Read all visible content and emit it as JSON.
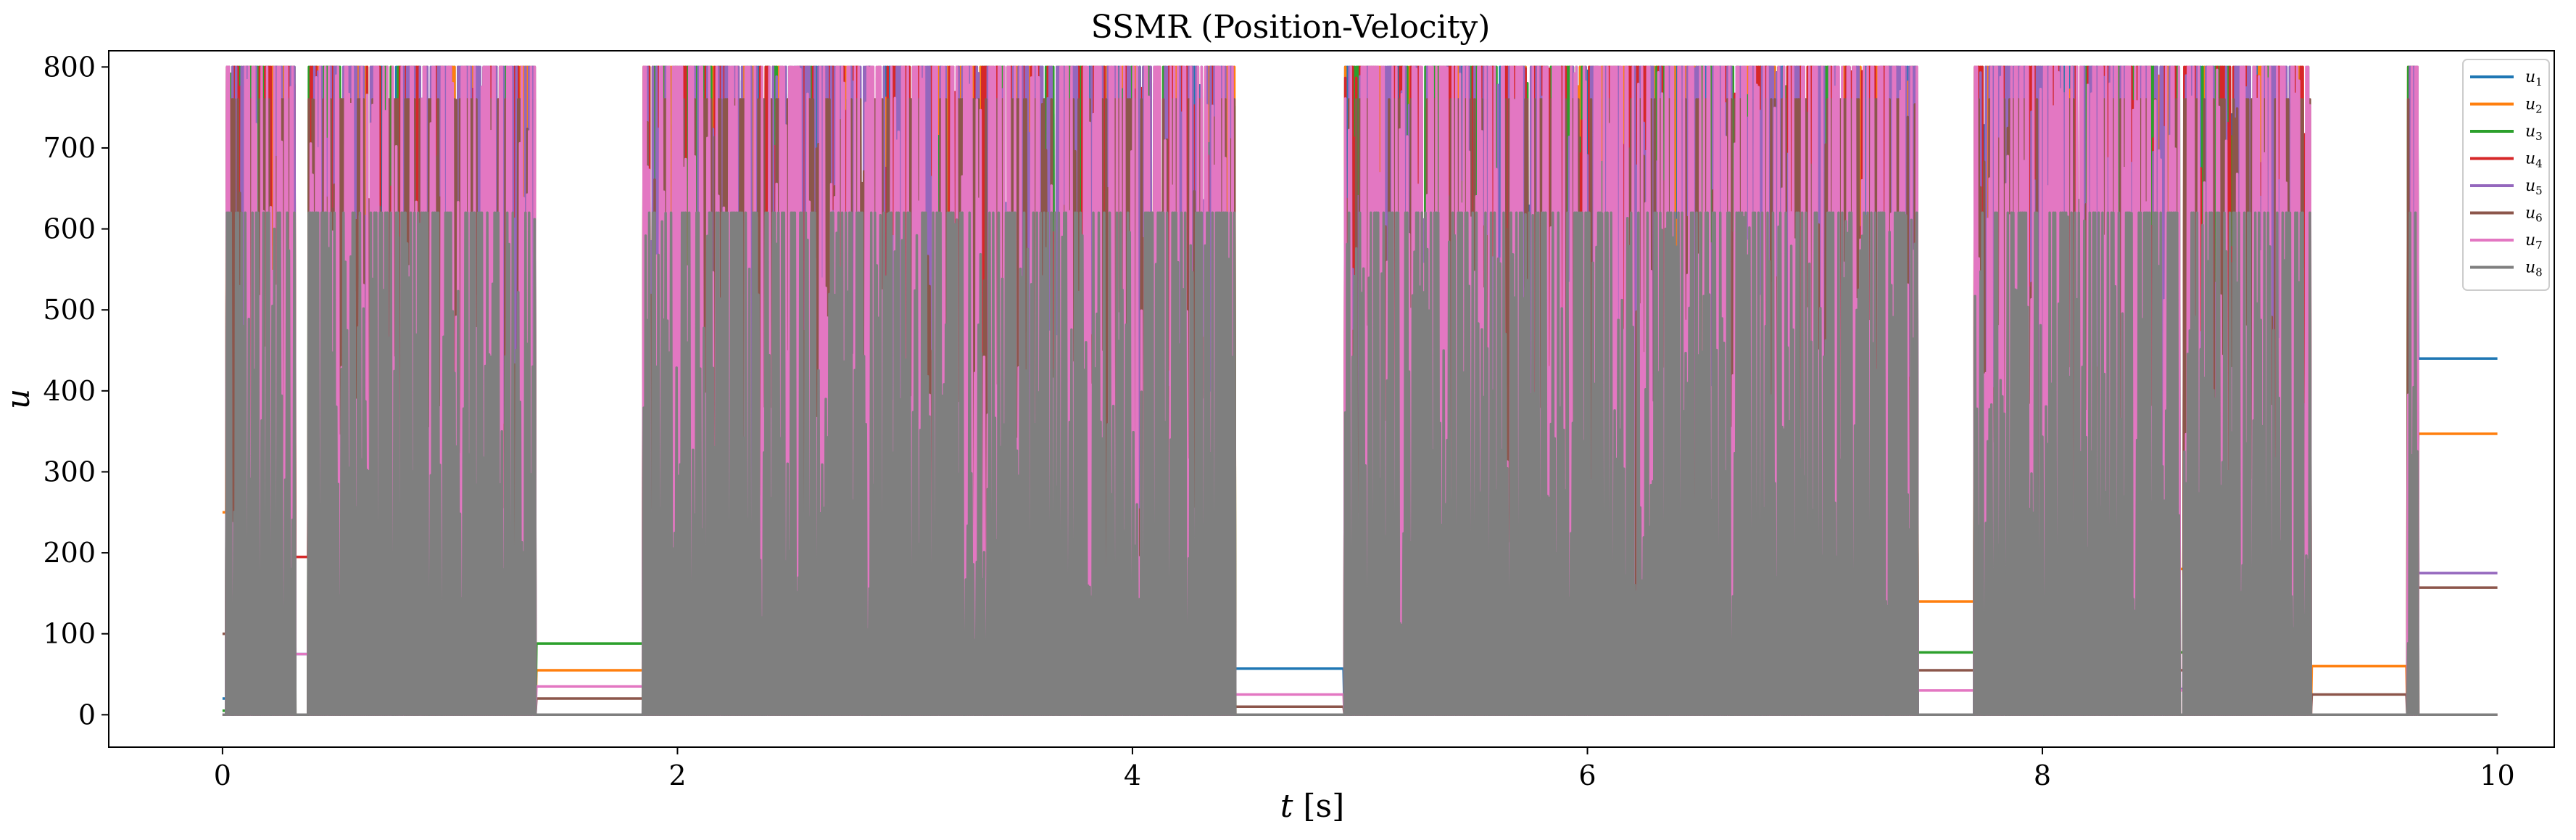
{
  "chart_data": {
    "type": "line",
    "title": "SSMR (Position-Velocity)",
    "xlabel_var": "t",
    "xlabel_unit": "[s]",
    "ylabel": "u",
    "xlim": [
      -0.5,
      10.25
    ],
    "ylim": [
      -40,
      820
    ],
    "xticks": [
      0,
      2,
      4,
      6,
      8,
      10
    ],
    "yticks": [
      0,
      100,
      200,
      300,
      400,
      500,
      600,
      700,
      800
    ],
    "grid": false,
    "legend_position": "top-right",
    "active_segments": [
      [
        0.02,
        0.32
      ],
      [
        0.38,
        1.38
      ],
      [
        1.85,
        4.45
      ],
      [
        4.93,
        7.45
      ],
      [
        7.7,
        8.6
      ],
      [
        8.62,
        9.18
      ],
      [
        9.6,
        9.65
      ]
    ],
    "series": [
      {
        "name": "u1",
        "sub": "1",
        "color": "#1f77b4",
        "seed": 11,
        "amp": 800,
        "steps": [
          [
            0.0,
            20
          ],
          [
            0.32,
            75
          ],
          [
            1.38,
            0
          ],
          [
            4.45,
            57
          ],
          [
            7.45,
            0
          ],
          [
            9.18,
            0
          ],
          [
            9.65,
            440
          ]
        ]
      },
      {
        "name": "u2",
        "sub": "2",
        "color": "#ff7f0e",
        "seed": 22,
        "amp": 800,
        "steps": [
          [
            0.0,
            250
          ],
          [
            0.32,
            0
          ],
          [
            1.38,
            55
          ],
          [
            4.45,
            0
          ],
          [
            7.45,
            140
          ],
          [
            8.6,
            180
          ],
          [
            9.18,
            60
          ],
          [
            9.65,
            347
          ]
        ]
      },
      {
        "name": "u3",
        "sub": "3",
        "color": "#2ca02c",
        "seed": 33,
        "amp": 800,
        "steps": [
          [
            0.0,
            5
          ],
          [
            0.32,
            0
          ],
          [
            1.38,
            88
          ],
          [
            4.45,
            0
          ],
          [
            7.45,
            77
          ],
          [
            9.18,
            0
          ],
          [
            9.65,
            0
          ]
        ]
      },
      {
        "name": "u4",
        "sub": "4",
        "color": "#d62728",
        "seed": 44,
        "amp": 800,
        "steps": [
          [
            0.0,
            0
          ],
          [
            0.32,
            195
          ],
          [
            1.38,
            0
          ],
          [
            4.45,
            0
          ],
          [
            7.45,
            0
          ],
          [
            9.18,
            0
          ],
          [
            9.65,
            0
          ]
        ]
      },
      {
        "name": "u5",
        "sub": "5",
        "color": "#9467bd",
        "seed": 55,
        "amp": 800,
        "steps": [
          [
            0.0,
            0
          ],
          [
            0.32,
            0
          ],
          [
            1.38,
            0
          ],
          [
            4.45,
            0
          ],
          [
            7.45,
            0
          ],
          [
            8.6,
            32
          ],
          [
            9.18,
            0
          ],
          [
            9.65,
            175
          ]
        ]
      },
      {
        "name": "u6",
        "sub": "6",
        "color": "#8c564b",
        "seed": 66,
        "amp": 760,
        "steps": [
          [
            0.0,
            100
          ],
          [
            0.32,
            0
          ],
          [
            1.38,
            20
          ],
          [
            4.45,
            10
          ],
          [
            7.45,
            55
          ],
          [
            9.18,
            25
          ],
          [
            9.65,
            157
          ]
        ]
      },
      {
        "name": "u7",
        "sub": "7",
        "color": "#e377c2",
        "seed": 77,
        "amp": 800,
        "steps": [
          [
            0.0,
            0
          ],
          [
            0.32,
            75
          ],
          [
            1.38,
            35
          ],
          [
            4.45,
            25
          ],
          [
            7.45,
            30
          ],
          [
            9.18,
            0
          ],
          [
            9.65,
            0
          ]
        ]
      },
      {
        "name": "u8",
        "sub": "8",
        "color": "#7f7f7f",
        "seed": 88,
        "amp": 620,
        "steps": [
          [
            0.0,
            0
          ],
          [
            0.32,
            0
          ],
          [
            1.38,
            0
          ],
          [
            4.45,
            0
          ],
          [
            7.45,
            0
          ],
          [
            9.18,
            0
          ],
          [
            9.65,
            0
          ]
        ]
      }
    ]
  }
}
